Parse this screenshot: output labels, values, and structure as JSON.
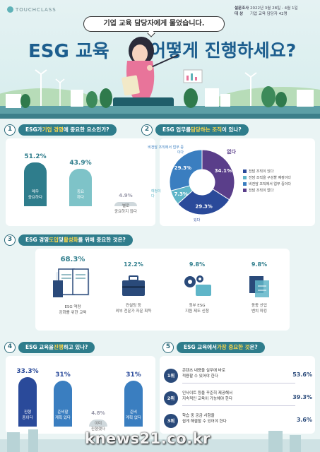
{
  "header": {
    "logo": "TOUCHCLASS",
    "survey_label": "설문조사",
    "survey_value": "2022년 3월 28일 - 4월 1일",
    "target_label": "대  상",
    "target_value": "기업 교육 담당자 42명",
    "bubble": "기업 교육 담당자에게 물었습니다.",
    "title_left": "ESG 교육",
    "title_right": "어떻게 진행하세요?"
  },
  "section1": {
    "num": "1",
    "title_parts": [
      "ESG가 ",
      "기업 경영",
      "에 중요한 요소인가?"
    ],
    "bars": [
      {
        "pct": "51.2%",
        "value": 51.2,
        "label1": "매우",
        "label2": "중요하다",
        "color": "#2f7d8c"
      },
      {
        "pct": "43.9%",
        "value": 43.9,
        "label1": "중요",
        "label2": "하다",
        "color": "#7ec3c8"
      },
      {
        "pct": "4.9%",
        "value": 4.9,
        "label1": "별로",
        "label2": "중요하지 않다",
        "color": "#cfd8dc"
      }
    ]
  },
  "section2": {
    "num": "2",
    "title_parts": [
      "ESG 업무를 ",
      "담당하는 조직",
      "이 있나?"
    ],
    "slices": [
      {
        "pct": "34.1%",
        "value": 34.1,
        "color": "#5a3e8a"
      },
      {
        "pct": "29.3%",
        "value": 29.3,
        "color": "#2a4a9a"
      },
      {
        "pct": "7.3%",
        "value": 7.3,
        "color": "#5fb5c8"
      },
      {
        "pct": "29.3%",
        "value": 29.3,
        "color": "#3a7ec0"
      }
    ],
    "callouts": {
      "none": "없다",
      "nonlead": "비전담 조직에서 업무 중이다",
      "plan": "예정이다",
      "exist": "있다"
    },
    "legend": [
      {
        "label": "전담 조직이 있다",
        "color": "#2a4a9a"
      },
      {
        "label": "전담 조직을 구성할 예정이다",
        "color": "#5fb5c8"
      },
      {
        "label": "비전담 조직에서 업무 중이다",
        "color": "#3a7ec0"
      },
      {
        "label": "전담 조직이 없다",
        "color": "#5a3e8a"
      }
    ]
  },
  "section3": {
    "num": "3",
    "title_parts": [
      "ESG 경영 ",
      "도입",
      " 및 ",
      "활성화",
      "를 위해 중요한 것은?"
    ],
    "items": [
      {
        "pct": "68.3%",
        "label1": "ESG 역량",
        "label2": "강화를 위한 교육",
        "icon": "book-icon"
      },
      {
        "pct": "12.2%",
        "label1": "컨설팅 등",
        "label2": "외부 전문가 자문 획득",
        "icon": "briefcase-icon"
      },
      {
        "pct": "9.8%",
        "label1": "정부 ESG",
        "label2": "지원 제도 신청",
        "icon": "gears-icon"
      },
      {
        "pct": "9.8%",
        "label1": "동종 산업",
        "label2": "벤치 마킹",
        "icon": "cube-icon"
      }
    ]
  },
  "section4": {
    "num": "4",
    "title_parts": [
      "ESG 교육을 ",
      "진행",
      "하고 있나?"
    ],
    "bars": [
      {
        "pct": "33.3%",
        "value": 33.3,
        "label1": "진행",
        "label2": "중이다",
        "color": "#2a4a9a"
      },
      {
        "pct": "31%",
        "value": 31,
        "label1": "준비할",
        "label2": "계획 있다",
        "color": "#3a7ec0"
      },
      {
        "pct": "4.8%",
        "value": 4.8,
        "label1": "이미",
        "label2": "진행했다",
        "color": "#cfd8dc"
      },
      {
        "pct": "31%",
        "value": 31,
        "label1": "준비",
        "label2": "계획 없다",
        "color": "#3a7ec0"
      }
    ]
  },
  "section5": {
    "num": "5",
    "title_parts": [
      "ESG 교육에서 ",
      "가장 중요한 것",
      "은?"
    ],
    "ranks": [
      {
        "badge": "1위",
        "line1": "콘텐츠 내용을 실무에 바로",
        "line2": "적용할 수 있어야 한다",
        "pct": "53.6%"
      },
      {
        "badge": "2위",
        "line1": "인사이트 등을 꾸준히 제공해서",
        "line2": "지속적인 교육이 가능해야 한다",
        "pct": "39.3%"
      },
      {
        "badge": "3위",
        "line1": "학습 중 궁금 사항을",
        "line2": "쉽게 해결할 수 있어야 한다",
        "pct": "3.6%"
      }
    ]
  },
  "watermark": "knews21.co.kr"
}
